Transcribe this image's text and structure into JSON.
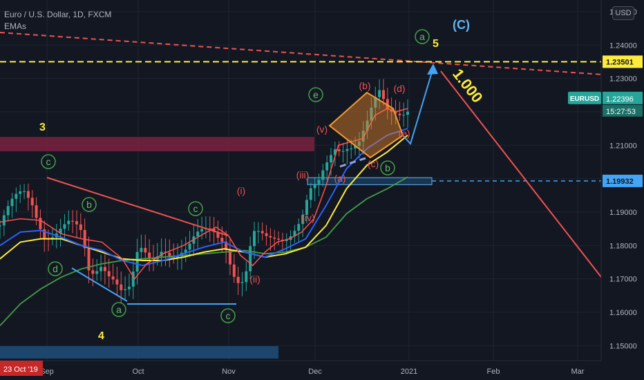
{
  "header": {
    "title": "Euro / U.S. Dollar, 1D, FXCM",
    "indicator": "EMAs"
  },
  "currency_badge": "USD",
  "colors": {
    "background": "#131722",
    "grid": "#1f2430",
    "candle_up": "#26a69a",
    "candle_down": "#ef5350",
    "ema_fast": "#ff5252",
    "ema_blue": "#2962ff",
    "ema_yellow": "#ffeb3b",
    "ema_green": "#43a047",
    "resistance_zone": "#7a2140",
    "support_zone": "#1e4f7a"
  },
  "chart_data": {
    "type": "candlestick",
    "title": "Euro / U.S. Dollar, 1D, FXCM",
    "ylim": [
      1.1455,
      1.2535
    ],
    "y_ticks": [
      "1.25000",
      "1.24000",
      "1.23000",
      "1.22000",
      "1.21000",
      "1.20000",
      "1.19000",
      "1.18000",
      "1.17000",
      "1.16000",
      "1.15000"
    ],
    "x_ticks": [
      "Sep",
      "Oct",
      "Nov",
      "Dec",
      "2021",
      "Feb",
      "Mar"
    ],
    "price_labels": [
      {
        "value": "1.23501",
        "kind": "line",
        "color": "#ffeb3b"
      },
      {
        "value": "1.22396",
        "kind": "last",
        "symbol": "EURUSD",
        "countdown": "15:27:53",
        "color": "#26a69a"
      },
      {
        "value": "1.19932",
        "kind": "line",
        "color": "#42a5f5"
      }
    ],
    "crosshair_date": "23 Oct '19",
    "ema_fast": [
      [
        0,
        1.187
      ],
      [
        5,
        1.188
      ],
      [
        10,
        1.1875
      ],
      [
        15,
        1.1835
      ],
      [
        20,
        1.182
      ],
      [
        25,
        1.181
      ],
      [
        30,
        1.176
      ],
      [
        33,
        1.17
      ],
      [
        36,
        1.1745
      ],
      [
        40,
        1.1775
      ],
      [
        45,
        1.18
      ],
      [
        50,
        1.1835
      ],
      [
        53,
        1.1855
      ],
      [
        56,
        1.183
      ],
      [
        59,
        1.177
      ],
      [
        62,
        1.174
      ],
      [
        65,
        1.178
      ],
      [
        68,
        1.181
      ],
      [
        71,
        1.182
      ],
      [
        74,
        1.184
      ],
      [
        77,
        1.188
      ],
      [
        80,
        1.198
      ],
      [
        83,
        1.21
      ],
      [
        86,
        1.211
      ],
      [
        89,
        1.212
      ],
      [
        92,
        1.219
      ],
      [
        95,
        1.221
      ],
      [
        97,
        1.22
      ],
      [
        100,
        1.221
      ]
    ],
    "ema_blue": [
      [
        0,
        1.18
      ],
      [
        5,
        1.184
      ],
      [
        10,
        1.1845
      ],
      [
        15,
        1.1825
      ],
      [
        20,
        1.18
      ],
      [
        25,
        1.1785
      ],
      [
        30,
        1.1755
      ],
      [
        35,
        1.174
      ],
      [
        40,
        1.1755
      ],
      [
        45,
        1.1775
      ],
      [
        50,
        1.1795
      ],
      [
        55,
        1.181
      ],
      [
        60,
        1.178
      ],
      [
        65,
        1.1765
      ],
      [
        70,
        1.179
      ],
      [
        75,
        1.182
      ],
      [
        80,
        1.192
      ],
      [
        85,
        1.203
      ],
      [
        90,
        1.209
      ],
      [
        95,
        1.213
      ],
      [
        100,
        1.215
      ]
    ],
    "ema_yellow": [
      [
        0,
        1.176
      ],
      [
        5,
        1.181
      ],
      [
        10,
        1.182
      ],
      [
        15,
        1.182
      ],
      [
        20,
        1.18
      ],
      [
        25,
        1.178
      ],
      [
        30,
        1.176
      ],
      [
        35,
        1.1755
      ],
      [
        40,
        1.1755
      ],
      [
        45,
        1.1765
      ],
      [
        50,
        1.178
      ],
      [
        55,
        1.179
      ],
      [
        60,
        1.178
      ],
      [
        65,
        1.1765
      ],
      [
        70,
        1.1775
      ],
      [
        75,
        1.1795
      ],
      [
        80,
        1.186
      ],
      [
        85,
        1.197
      ],
      [
        90,
        1.204
      ],
      [
        95,
        1.208
      ],
      [
        100,
        1.213
      ]
    ],
    "ema_green": [
      [
        0,
        1.156
      ],
      [
        5,
        1.1625
      ],
      [
        10,
        1.167
      ],
      [
        15,
        1.1705
      ],
      [
        20,
        1.173
      ],
      [
        25,
        1.1745
      ],
      [
        30,
        1.1755
      ],
      [
        35,
        1.176
      ],
      [
        40,
        1.1765
      ],
      [
        45,
        1.177
      ],
      [
        50,
        1.1775
      ],
      [
        55,
        1.178
      ],
      [
        60,
        1.1785
      ],
      [
        65,
        1.1775
      ],
      [
        70,
        1.178
      ],
      [
        75,
        1.1795
      ],
      [
        80,
        1.1825
      ],
      [
        85,
        1.1895
      ],
      [
        90,
        1.194
      ],
      [
        95,
        1.197
      ],
      [
        100,
        1.2005
      ]
    ],
    "close_path": [
      [
        0,
        1.186
      ],
      [
        3,
        1.19
      ],
      [
        6,
        1.194
      ],
      [
        8,
        1.193
      ],
      [
        11,
        1.186
      ],
      [
        14,
        1.185
      ],
      [
        17,
        1.184
      ],
      [
        20,
        1.181
      ],
      [
        22,
        1.171
      ],
      [
        25,
        1.178
      ],
      [
        28,
        1.172
      ],
      [
        30,
        1.165
      ],
      [
        32,
        1.164
      ],
      [
        34,
        1.176
      ],
      [
        37,
        1.176
      ],
      [
        40,
        1.183
      ],
      [
        43,
        1.178
      ],
      [
        46,
        1.176
      ],
      [
        49,
        1.181
      ],
      [
        52,
        1.186
      ],
      [
        55,
        1.185
      ],
      [
        58,
        1.17
      ],
      [
        60,
        1.167
      ],
      [
        62,
        1.18
      ],
      [
        65,
        1.181
      ],
      [
        68,
        1.185
      ],
      [
        71,
        1.186
      ],
      [
        74,
        1.187
      ],
      [
        76,
        1.193
      ],
      [
        78,
        1.195
      ],
      [
        80,
        1.203
      ],
      [
        82,
        1.211
      ],
      [
        85,
        1.213
      ],
      [
        88,
        1.211
      ],
      [
        90,
        1.214
      ],
      [
        93,
        1.223
      ],
      [
        95,
        1.22
      ],
      [
        97,
        1.222
      ],
      [
        100,
        1.224
      ]
    ],
    "resistance_zone": {
      "y_low": 1.2082,
      "y_high": 1.2125
    },
    "support_zone": {
      "y_low": 1.1982,
      "y_high": 1.2003
    },
    "horizontal_lines": [
      1.23501,
      1.19932
    ],
    "wave_labels": [
      "3",
      "4",
      "5",
      "(C)",
      "1.000"
    ],
    "circled_labels": [
      "c",
      "a",
      "b",
      "c",
      "d",
      "e",
      "a",
      "c",
      "b"
    ],
    "red_labels": [
      "(i)",
      "(ii)",
      "(iii)",
      "(iv)",
      "(a)",
      "(b)",
      "(c)",
      "(d)",
      "(e)",
      "(v)"
    ]
  }
}
